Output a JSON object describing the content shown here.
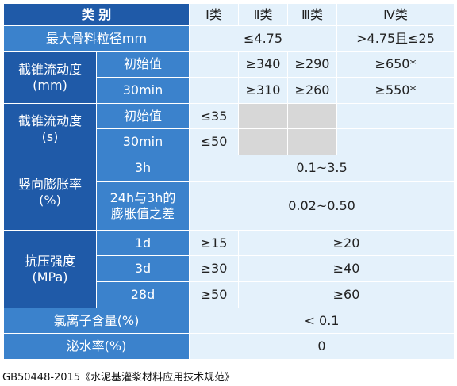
{
  "header": {
    "category": "类  别",
    "class1": "Ⅰ类",
    "class2": "Ⅱ类",
    "class3": "Ⅲ类",
    "class4": "Ⅳ类"
  },
  "max_aggregate": {
    "label": "最大骨料粒径mm",
    "value_1_3": "≤4.75",
    "value_4": ">4.75且≤25"
  },
  "slump_flow_mm": {
    "label_line1": "截锥流动度",
    "label_line2": "(mm)",
    "initial": {
      "label": "初始值",
      "class1": "",
      "class2": "≥340",
      "class3": "≥290",
      "class4": "≥650*"
    },
    "min30": {
      "label": "30min",
      "class1": "",
      "class2": "≥310",
      "class3": "≥260",
      "class4": "≥550*"
    }
  },
  "slump_flow_s": {
    "label_line1": "截锥流动度",
    "label_line2": "(s)",
    "initial": {
      "label": "初始值",
      "class1": "≤35"
    },
    "min30": {
      "label": "30min",
      "class1": "≤50"
    }
  },
  "vertical_expansion": {
    "label_line1": "竖向膨胀率",
    "label_line2": "(%)",
    "h3": {
      "label": "3h",
      "value": "0.1~3.5"
    },
    "diff": {
      "label_line1": "24h与3h的",
      "label_line2": "膨胀值之差",
      "value": "0.02~0.50"
    }
  },
  "compressive_strength": {
    "label_line1": "抗压强度",
    "label_line2": "(MPa)",
    "d1": {
      "label": "1d",
      "class1": "≥15",
      "class2_4": "≥20"
    },
    "d3": {
      "label": "3d",
      "class1": "≥30",
      "class2_4": "≥40"
    },
    "d28": {
      "label": "28d",
      "class1": "≥50",
      "class2_4": "≥60"
    }
  },
  "chloride": {
    "label": "氯离子含量(%)",
    "value": "< 0.1"
  },
  "bleeding": {
    "label": "泌水率(%)",
    "value": "0"
  },
  "footer": "GB50448-2015《水泥基灌浆材料应用技术规范》",
  "colors": {
    "header_dark": "#1f5aa8",
    "header_sub": "#3b82cc",
    "value_light": "#e4f1fb",
    "value_grey": "#d7d7d7"
  }
}
